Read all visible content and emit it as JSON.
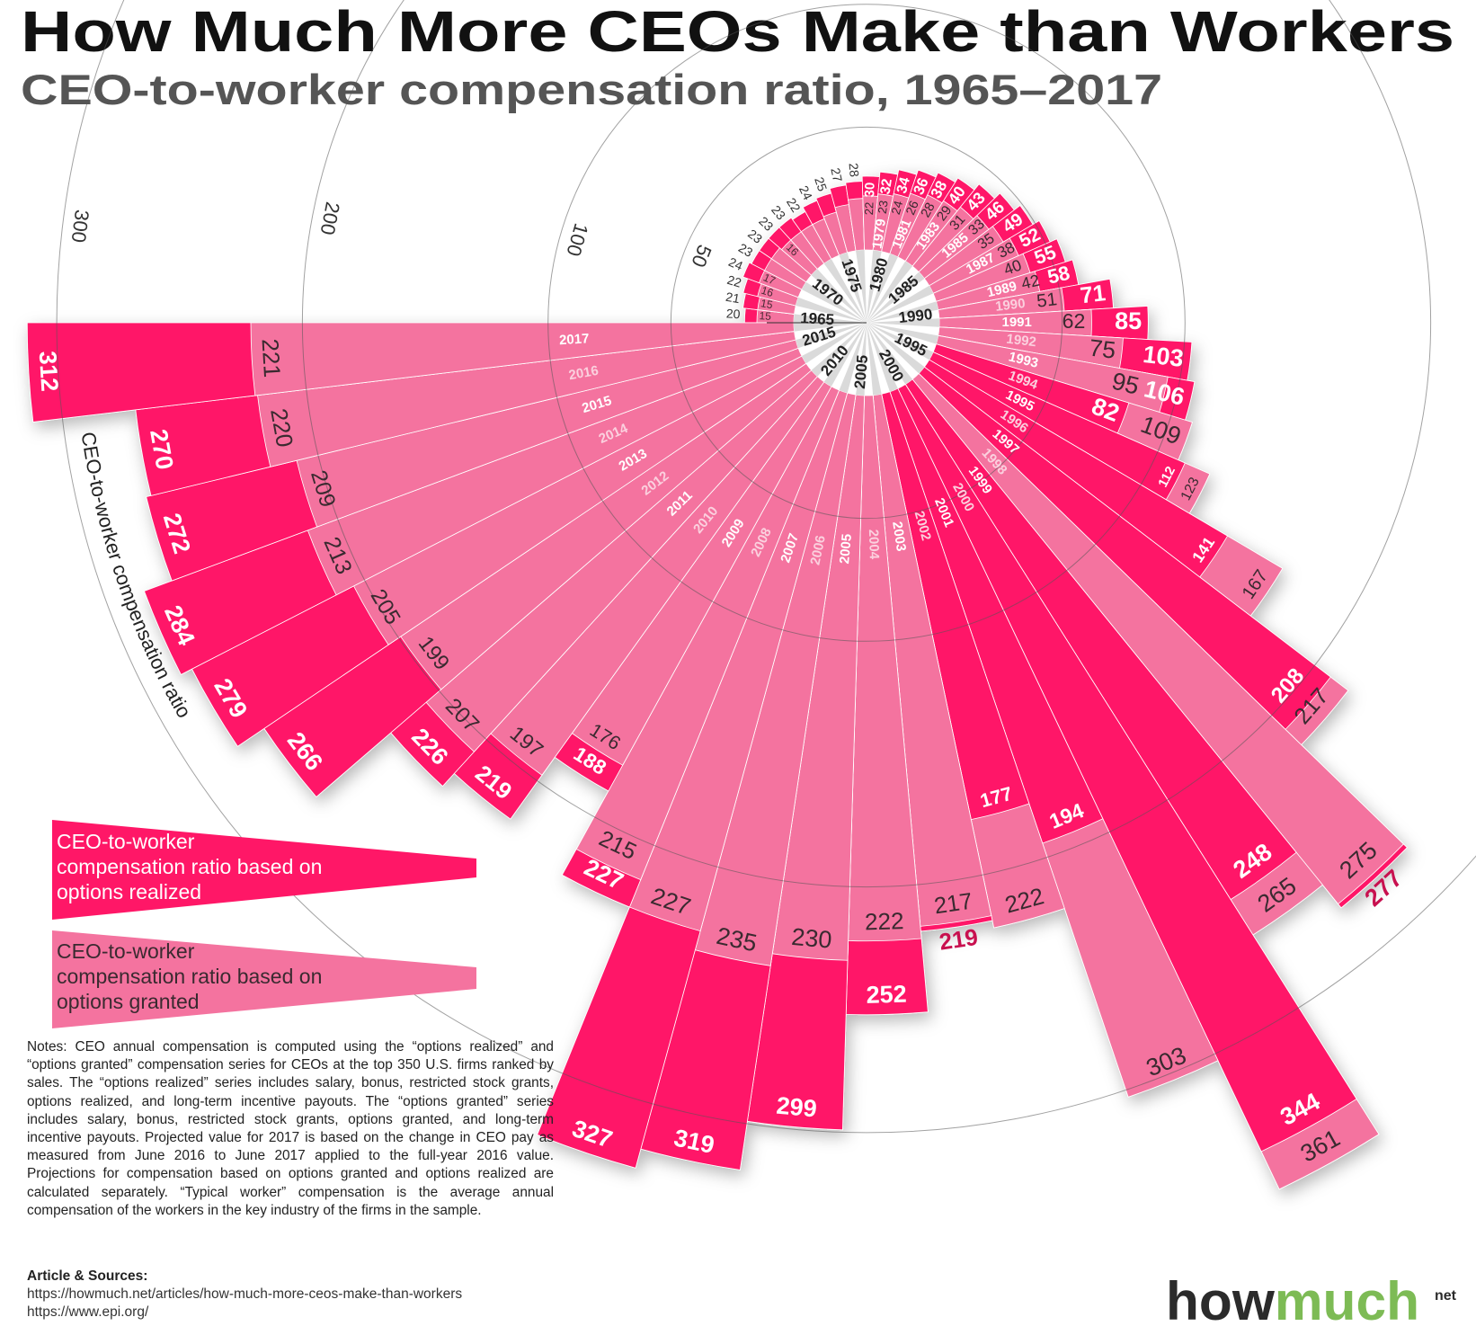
{
  "title": "How Much More CEOs Make than Workers",
  "subtitle": "CEO-to-worker compensation ratio, 1965–2017",
  "chart_data": {
    "type": "radial-bar",
    "title": "How Much More CEOs Make than Workers",
    "subtitle": "CEO-to-worker compensation ratio, 1965–2017",
    "axis_label": "CEO-to-worker compensation ratio",
    "ring_ticks": [
      50,
      100,
      200,
      300
    ],
    "grid": true,
    "legend_position": "left",
    "years": [
      1965,
      1966,
      1967,
      1968,
      1969,
      1970,
      1971,
      1972,
      1973,
      1974,
      1975,
      1976,
      1977,
      1978,
      1979,
      1980,
      1981,
      1982,
      1983,
      1984,
      1985,
      1986,
      1987,
      1988,
      1989,
      1990,
      1991,
      1992,
      1993,
      1994,
      1995,
      1996,
      1997,
      1998,
      1999,
      2000,
      2001,
      2002,
      2003,
      2004,
      2005,
      2006,
      2007,
      2008,
      2009,
      2010,
      2011,
      2012,
      2013,
      2014,
      2015,
      2016,
      2017
    ],
    "hub_year_labels": [
      1965,
      1970,
      1975,
      1980,
      1985,
      1990,
      1995,
      2000,
      2005,
      2010,
      2015
    ],
    "series": [
      {
        "key": "realized",
        "legend_lines": [
          "CEO-to-worker",
          "compensation ratio based on",
          "options realized"
        ],
        "color": "#ff1767",
        "values": [
          20,
          21,
          22,
          24,
          23,
          23,
          23,
          23,
          22,
          24,
          25,
          27,
          28,
          30,
          32,
          34,
          36,
          38,
          40,
          43,
          46,
          49,
          52,
          55,
          58,
          71,
          85,
          103,
          106,
          82,
          112,
          141,
          208,
          277,
          248,
          344,
          194,
          177,
          219,
          252,
          299,
          319,
          327,
          227,
          188,
          219,
          226,
          266,
          279,
          284,
          272,
          270,
          312
        ]
      },
      {
        "key": "granted",
        "legend_lines": [
          "CEO-to-worker",
          "compensation ratio based on",
          "options granted"
        ],
        "color": "#f4739f",
        "values": [
          15,
          15,
          16,
          17,
          17,
          17,
          16,
          16,
          16,
          16,
          17,
          19,
          21,
          22,
          23,
          24,
          26,
          28,
          29,
          31,
          33,
          35,
          38,
          40,
          42,
          51,
          62,
          75,
          95,
          109,
          123,
          167,
          217,
          275,
          265,
          361,
          303,
          222,
          217,
          222,
          230,
          235,
          227,
          215,
          176,
          197,
          207,
          199,
          205,
          213,
          209,
          220,
          221
        ]
      }
    ]
  },
  "notes": "Notes: CEO annual compensation is computed using the “options realized” and “options granted” compensation series for CEOs at the top 350 U.S. firms ranked by sales. The “options realized” series includes salary, bonus, restricted stock grants, options realized, and long-term incentive payouts. The “options granted” series includes salary, bonus, restricted stock grants, options granted, and long-term incentive payouts. Projected value for 2017 is based on the change in CEO pay as measured from June 2016 to June 2017 applied to the full-year 2016 value. Projections for compensation based on options granted and options realized are calculated separately. “Typical worker” compensation is the average annual compensation of the workers in the key industry of the firms in the sample.",
  "sources": {
    "heading": "Article & Sources:",
    "links": [
      "https://howmuch.net/articles/how-much-more-ceos-make-than-workers",
      "https://www.epi.org/"
    ]
  },
  "logo": {
    "how": "how",
    "much": "much",
    "net": "net",
    "dark": "#2b2b2b",
    "green": "#7dbb55"
  }
}
